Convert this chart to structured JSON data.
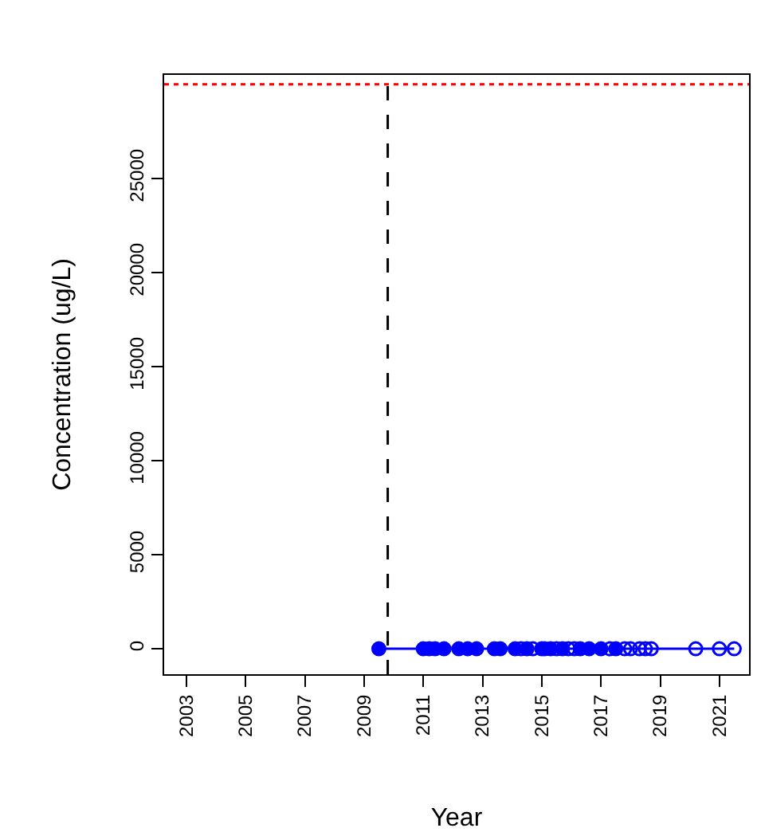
{
  "chart_data": {
    "type": "scatter",
    "xlabel": "Year",
    "ylabel": "Concentration (ug/L)",
    "xlim": [
      2002.25,
      2022.0
    ],
    "xticks": [
      2003,
      2005,
      2007,
      2009,
      2011,
      2013,
      2015,
      2017,
      2019,
      2021
    ],
    "ylim": [
      -1350,
      30500
    ],
    "yticks": [
      0,
      5000,
      10000,
      15000,
      20000,
      25000
    ],
    "series": [
      {
        "type": "line",
        "color": "#0000ff",
        "marker": "none",
        "x": [
          2009.5,
          2011.0,
          2011.2,
          2011.4,
          2011.7,
          2012.2,
          2012.5,
          2012.8,
          2013.4,
          2013.6,
          2014.1,
          2014.3,
          2014.5,
          2014.7,
          2015.0,
          2015.1,
          2015.3,
          2015.5,
          2015.7,
          2015.9,
          2016.1,
          2016.3,
          2016.6,
          2017.0,
          2017.3,
          2017.5,
          2017.8,
          2018.0,
          2018.3,
          2018.5,
          2018.7,
          2020.2,
          2021.0,
          2021.5
        ],
        "values": [
          0,
          0,
          0,
          0,
          0,
          0,
          0,
          0,
          0,
          0,
          0,
          0,
          0,
          0,
          0,
          0,
          0,
          0,
          0,
          0,
          0,
          0,
          0,
          0,
          0,
          0,
          0,
          0,
          0,
          0,
          0,
          0,
          0,
          0
        ]
      },
      {
        "color": "#0000ff",
        "marker": "circle",
        "x": [
          2009.5,
          2011.0,
          2011.2,
          2011.4,
          2011.7,
          2012.2,
          2012.5,
          2012.8,
          2013.4,
          2013.6,
          2014.1,
          2014.5,
          2015.0,
          2015.3,
          2015.7,
          2016.3,
          2016.6,
          2017.0,
          2017.5
        ],
        "values": [
          0,
          0,
          0,
          0,
          0,
          0,
          0,
          0,
          0,
          0,
          0,
          0,
          0,
          0,
          0,
          0,
          0,
          0,
          0
        ]
      },
      {
        "color": "#0000ff",
        "marker": "circle-open",
        "x": [
          2014.3,
          2014.7,
          2015.1,
          2015.5,
          2015.9,
          2016.1,
          2017.3,
          2017.8,
          2018.0,
          2018.3,
          2018.5,
          2018.7,
          2020.2,
          2021.0,
          2021.5
        ],
        "values": [
          0,
          0,
          0,
          0,
          0,
          0,
          0,
          0,
          0,
          0,
          0,
          0,
          0,
          0,
          0
        ]
      }
    ],
    "ref_lines": [
      {
        "axis": "x",
        "value": 2009.8,
        "color": "#000000",
        "line_style": "dashed"
      },
      {
        "axis": "y",
        "value": 30000,
        "color": "#ff0000",
        "line_style": "dotted"
      }
    ]
  }
}
